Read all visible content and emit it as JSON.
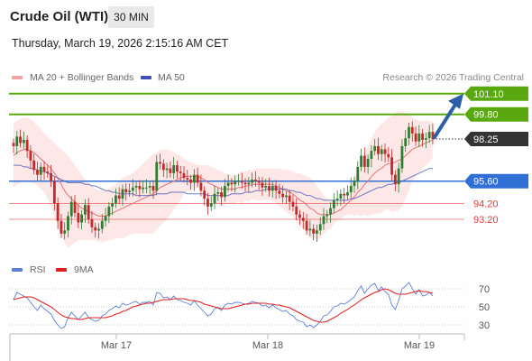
{
  "header": {
    "title": "Crude Oil (WTI)",
    "timeframe": "30 MIN",
    "timestamp": "Thursday, March 19, 2026 2:15:16 AM CET"
  },
  "legend": {
    "ma20": "MA 20 + Bollinger Bands",
    "ma50": "MA 50",
    "credit": "Research © 2026 Trading Central"
  },
  "rsi_legend": {
    "rsi": "RSI",
    "ma": "9MA"
  },
  "colors": {
    "up": "#2e7d32",
    "down": "#c62828",
    "ma20": "#e57373",
    "ma50": "#3f51b5",
    "band": "#fde3e3",
    "resistance": "#5aa80f",
    "support": "#2f6fd6",
    "pivot_support": "#e53935",
    "current": "#333333",
    "rsi": "#5b7ed6",
    "rsi_ma": "#e02020"
  },
  "chart_data": {
    "type": "candlestick",
    "title": "Crude Oil (WTI)",
    "timeframe": "30 MIN",
    "x_labels": [
      "Mar 17",
      "Mar 18",
      "Mar 19"
    ],
    "price_labels_visible_only": true,
    "ylim": [
      91.1,
      101.6
    ],
    "levels": [
      {
        "value": 101.1,
        "label": "101.10",
        "kind": "resistance"
      },
      {
        "value": 99.8,
        "label": "99.80",
        "kind": "resistance"
      },
      {
        "value": 98.25,
        "label": "98.25",
        "kind": "current"
      },
      {
        "value": 95.6,
        "label": "95.60",
        "kind": "pivot"
      },
      {
        "value": 94.2,
        "label": "94.20",
        "kind": "support"
      },
      {
        "value": 93.2,
        "label": "93.20",
        "kind": "support"
      }
    ],
    "close": [
      97.8,
      98.4,
      98.0,
      98.2,
      97.5,
      96.9,
      96.3,
      96.0,
      96.5,
      96.2,
      96.1,
      95.6,
      94.2,
      93.1,
      92.3,
      92.5,
      93.4,
      94.3,
      93.6,
      93.0,
      93.5,
      94.1,
      93.2,
      92.7,
      92.5,
      92.6,
      93.1,
      93.4,
      94.0,
      94.2,
      94.7,
      94.5,
      95.1,
      94.9,
      95.0,
      95.2,
      95.3,
      95.1,
      95.2,
      95.2,
      95.3,
      95.0,
      96.8,
      96.7,
      96.3,
      96.4,
      96.1,
      96.6,
      96.2,
      96.1,
      95.8,
      95.7,
      95.5,
      96.0,
      95.5,
      95.0,
      94.5,
      94.0,
      94.2,
      94.8,
      94.9,
      94.6,
      95.3,
      95.5,
      95.4,
      95.6,
      95.6,
      95.5,
      95.4,
      95.5,
      95.7,
      95.6,
      95.5,
      95.2,
      95.3,
      95.0,
      95.3,
      95.0,
      94.8,
      94.6,
      94.7,
      94.3,
      94.0,
      93.5,
      93.3,
      93.1,
      92.5,
      92.6,
      92.3,
      92.5,
      92.9,
      93.4,
      93.5,
      93.9,
      94.4,
      94.5,
      94.8,
      94.7,
      94.9,
      95.3,
      95.6,
      96.5,
      97.2,
      96.5,
      97.0,
      97.5,
      97.8,
      97.3,
      97.6,
      97.3,
      97.1,
      96.0,
      95.4,
      96.4,
      97.8,
      98.3,
      99.0,
      98.6,
      98.1,
      98.6,
      98.2,
      98.3,
      98.7,
      98.25
    ],
    "open": [
      98.0,
      97.8,
      98.4,
      98.0,
      98.2,
      97.5,
      96.9,
      96.3,
      96.0,
      96.5,
      96.2,
      96.1,
      95.6,
      94.2,
      93.1,
      92.3,
      92.5,
      93.4,
      94.3,
      93.6,
      93.0,
      93.5,
      94.1,
      93.2,
      92.7,
      92.5,
      92.6,
      93.1,
      93.4,
      94.0,
      94.2,
      94.7,
      94.5,
      95.1,
      94.9,
      95.0,
      95.2,
      95.3,
      95.1,
      95.2,
      95.2,
      95.3,
      95.0,
      96.8,
      96.7,
      96.3,
      96.4,
      96.1,
      96.6,
      96.2,
      96.1,
      95.8,
      95.7,
      95.5,
      96.0,
      95.5,
      95.0,
      94.5,
      94.0,
      94.2,
      94.8,
      94.9,
      94.6,
      95.3,
      95.5,
      95.4,
      95.6,
      95.6,
      95.5,
      95.4,
      95.5,
      95.7,
      95.6,
      95.5,
      95.2,
      95.3,
      95.0,
      95.3,
      95.0,
      94.8,
      94.6,
      94.7,
      94.3,
      94.0,
      93.5,
      93.3,
      93.1,
      92.5,
      92.6,
      92.3,
      92.5,
      92.9,
      93.4,
      93.5,
      93.9,
      94.4,
      94.5,
      94.8,
      94.7,
      94.9,
      95.3,
      95.6,
      96.5,
      97.2,
      96.5,
      97.0,
      97.5,
      97.8,
      97.3,
      97.6,
      97.3,
      97.1,
      96.0,
      95.4,
      96.4,
      97.8,
      98.3,
      99.0,
      98.6,
      98.1,
      98.6,
      98.2,
      98.3,
      98.7
    ],
    "ma20": [
      97.2,
      97.4,
      97.5,
      97.6,
      97.6,
      97.5,
      97.4,
      97.2,
      97.0,
      96.8,
      96.6,
      96.4,
      96.1,
      95.8,
      95.4,
      95.0,
      94.7,
      94.5,
      94.3,
      94.1,
      93.9,
      93.8,
      93.7,
      93.6,
      93.5,
      93.4,
      93.4,
      93.4,
      93.5,
      93.6,
      93.7,
      93.8,
      93.9,
      94.0,
      94.1,
      94.2,
      94.3,
      94.4,
      94.5,
      94.6,
      94.7,
      94.8,
      95.0,
      95.2,
      95.3,
      95.4,
      95.5,
      95.6,
      95.7,
      95.8,
      95.9,
      95.9,
      95.9,
      95.9,
      95.9,
      95.8,
      95.7,
      95.5,
      95.4,
      95.3,
      95.2,
      95.1,
      95.1,
      95.1,
      95.1,
      95.1,
      95.2,
      95.2,
      95.3,
      95.3,
      95.4,
      95.4,
      95.4,
      95.4,
      95.4,
      95.4,
      95.4,
      95.3,
      95.2,
      95.1,
      95.0,
      94.9,
      94.8,
      94.6,
      94.4,
      94.3,
      94.1,
      93.9,
      93.8,
      93.6,
      93.5,
      93.5,
      93.5,
      93.5,
      93.6,
      93.7,
      93.8,
      94.0,
      94.2,
      94.4,
      94.6,
      94.9,
      95.1,
      95.4,
      95.6,
      95.9,
      96.1,
      96.3,
      96.4,
      96.6,
      96.7,
      96.7,
      96.8,
      96.9,
      97.0,
      97.2,
      97.4,
      97.6,
      97.7,
      97.8,
      97.9,
      98.0,
      98.1,
      98.2
    ],
    "ma50": [
      96.6,
      96.6,
      96.6,
      96.5,
      96.5,
      96.4,
      96.4,
      96.3,
      96.2,
      96.2,
      96.1,
      96.0,
      95.9,
      95.8,
      95.7,
      95.6,
      95.5,
      95.5,
      95.5,
      95.5,
      95.5,
      95.4,
      95.4,
      95.3,
      95.3,
      95.2,
      95.1,
      95.0,
      95.0,
      94.9,
      94.9,
      94.8,
      94.8,
      94.8,
      94.8,
      94.8,
      94.7,
      94.7,
      94.7,
      94.7,
      94.7,
      94.7,
      94.8,
      94.8,
      94.8,
      94.8,
      94.9,
      94.9,
      94.9,
      94.9,
      94.9,
      94.8,
      94.8,
      94.8,
      94.8,
      94.8,
      94.8,
      94.7,
      94.7,
      94.7,
      94.7,
      94.7,
      94.7,
      94.7,
      94.8,
      94.8,
      94.8,
      94.8,
      94.9,
      94.9,
      94.9,
      95.0,
      95.0,
      95.0,
      95.1,
      95.1,
      95.1,
      95.1,
      95.1,
      95.1,
      95.1,
      95.0,
      95.0,
      94.9,
      94.9,
      94.8,
      94.7,
      94.7,
      94.6,
      94.5,
      94.5,
      94.4,
      94.4,
      94.4,
      94.4,
      94.4,
      94.4,
      94.4,
      94.4,
      94.5,
      94.5,
      94.6,
      94.7,
      94.8,
      94.9,
      95.0,
      95.1,
      95.2,
      95.2,
      95.3,
      95.4,
      95.4,
      95.5,
      95.5,
      95.6,
      95.7,
      95.8,
      95.9,
      96.0,
      96.1,
      96.2,
      96.3,
      96.4,
      96.4
    ],
    "bb_upper": [
      99.2,
      99.4,
      99.5,
      99.6,
      99.6,
      99.5,
      99.3,
      99.1,
      98.9,
      98.6,
      98.4,
      98.2,
      98.0,
      97.8,
      97.6,
      97.4,
      97.2,
      96.9,
      96.6,
      96.3,
      96.0,
      95.7,
      95.5,
      95.3,
      95.1,
      95.0,
      95.0,
      95.0,
      95.1,
      95.3,
      95.4,
      95.6,
      95.8,
      95.9,
      96.0,
      96.1,
      96.3,
      96.5,
      96.7,
      96.9,
      97.1,
      97.3,
      97.4,
      97.6,
      97.6,
      97.6,
      97.5,
      97.4,
      97.3,
      97.2,
      97.0,
      96.9,
      96.8,
      96.7,
      96.6,
      96.6,
      96.6,
      96.6,
      96.5,
      96.4,
      96.3,
      96.2,
      96.1,
      96.0,
      96.0,
      96.0,
      96.1,
      96.2,
      96.2,
      96.3,
      96.3,
      96.4,
      96.4,
      96.4,
      96.4,
      96.4,
      96.4,
      96.4,
      96.4,
      96.3,
      96.3,
      96.3,
      96.2,
      96.1,
      96.1,
      96.0,
      95.9,
      95.8,
      95.6,
      95.3,
      95.0,
      94.7,
      94.5,
      94.4,
      94.3,
      94.3,
      94.4,
      94.6,
      94.9,
      95.3,
      95.8,
      96.3,
      96.8,
      97.3,
      97.8,
      98.3,
      98.7,
      99.0,
      99.2,
      99.4,
      99.6,
      99.7,
      99.9,
      100.0,
      100.0,
      99.9,
      99.8,
      99.6,
      99.5,
      99.4,
      99.4,
      99.4,
      99.4,
      99.3
    ],
    "bb_lower": [
      95.2,
      95.4,
      95.5,
      95.6,
      95.6,
      95.5,
      95.5,
      95.3,
      95.1,
      94.9,
      94.5,
      94.0,
      93.4,
      92.8,
      92.2,
      91.7,
      91.4,
      91.6,
      91.7,
      91.9,
      91.9,
      91.9,
      91.9,
      91.9,
      91.9,
      91.8,
      91.8,
      91.8,
      91.9,
      91.9,
      92.0,
      92.0,
      92.0,
      92.1,
      92.2,
      92.3,
      92.3,
      92.3,
      92.3,
      92.3,
      92.3,
      92.3,
      92.6,
      92.8,
      93.0,
      93.2,
      93.5,
      93.8,
      94.1,
      94.4,
      94.8,
      94.9,
      95.0,
      95.1,
      95.2,
      95.0,
      94.8,
      94.4,
      94.3,
      94.2,
      94.1,
      94.0,
      94.1,
      94.2,
      94.2,
      94.2,
      94.3,
      94.2,
      94.4,
      94.3,
      94.5,
      94.4,
      94.4,
      94.4,
      94.4,
      94.4,
      94.4,
      94.2,
      94.0,
      93.9,
      93.7,
      93.5,
      93.4,
      93.1,
      92.7,
      92.6,
      92.3,
      92.0,
      92.0,
      91.9,
      92.0,
      92.3,
      92.5,
      92.6,
      92.9,
      93.1,
      93.2,
      93.4,
      93.5,
      93.5,
      93.4,
      93.5,
      93.4,
      93.5,
      93.4,
      93.5,
      93.5,
      93.6,
      93.6,
      93.8,
      93.8,
      93.7,
      93.7,
      93.8,
      94.0,
      94.5,
      95.0,
      95.6,
      95.9,
      96.2,
      96.4,
      96.6,
      96.8,
      97.1
    ],
    "rsi": {
      "name": "RSI",
      "ma_name": "9MA",
      "levels": [
        70,
        50,
        30
      ],
      "ylim": [
        20,
        80
      ],
      "values": [
        58,
        66,
        64,
        62,
        60,
        55,
        50,
        46,
        52,
        48,
        45,
        42,
        35,
        30,
        26,
        28,
        38,
        44,
        40,
        36,
        40,
        44,
        38,
        36,
        34,
        35,
        40,
        42,
        46,
        48,
        51,
        49,
        54,
        52,
        53,
        55,
        56,
        53,
        55,
        55,
        56,
        52,
        66,
        65,
        60,
        61,
        58,
        62,
        58,
        57,
        55,
        54,
        52,
        57,
        52,
        48,
        44,
        40,
        42,
        48,
        49,
        46,
        52,
        54,
        53,
        55,
        55,
        54,
        53,
        54,
        56,
        55,
        54,
        51,
        52,
        49,
        52,
        49,
        47,
        45,
        46,
        42,
        40,
        36,
        34,
        33,
        28,
        30,
        27,
        30,
        34,
        40,
        41,
        45,
        50,
        51,
        54,
        53,
        55,
        58,
        61,
        68,
        73,
        65,
        70,
        74,
        76,
        68,
        72,
        67,
        64,
        52,
        47,
        57,
        70,
        73,
        77,
        70,
        64,
        69,
        62,
        63,
        66,
        62
      ],
      "ma_values": [
        58,
        59,
        60,
        61,
        61,
        61,
        60,
        58,
        56,
        54,
        52,
        50,
        47,
        44,
        41,
        39,
        38,
        37,
        37,
        36,
        36,
        37,
        38,
        38,
        38,
        38,
        38,
        38,
        39,
        40,
        42,
        43,
        45,
        46,
        48,
        50,
        51,
        52,
        53,
        54,
        54,
        55,
        56,
        57,
        58,
        58,
        58,
        59,
        59,
        59,
        59,
        58,
        57,
        57,
        56,
        55,
        53,
        52,
        51,
        50,
        49,
        48,
        48,
        48,
        49,
        50,
        51,
        52,
        53,
        53,
        54,
        54,
        54,
        54,
        54,
        53,
        53,
        52,
        52,
        51,
        50,
        49,
        47,
        45,
        43,
        41,
        39,
        37,
        35,
        34,
        33,
        33,
        34,
        36,
        38,
        40,
        43,
        45,
        47,
        50,
        52,
        55,
        58,
        60,
        62,
        64,
        66,
        67,
        69,
        70,
        69,
        67,
        65,
        64,
        64,
        64,
        65,
        66,
        67,
        68,
        67,
        67,
        66,
        65
      ]
    }
  }
}
